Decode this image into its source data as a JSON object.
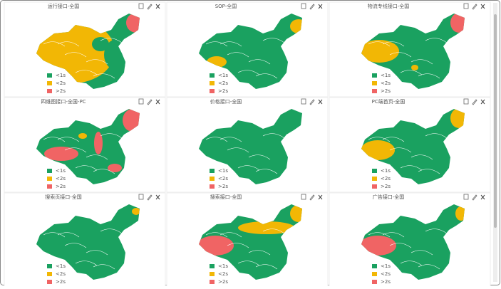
{
  "panels": [
    {
      "title": "运行接口-全国",
      "legend": [
        "<1s",
        "<2s",
        ">2s"
      ]
    },
    {
      "title": "SOP-全国",
      "legend": [
        "<1s",
        "<2s",
        ">2s"
      ]
    },
    {
      "title": "物流专线接口-全国",
      "legend": [
        "<1s",
        "<2s",
        ">2s"
      ]
    },
    {
      "title": "四维图接口-全国-PC",
      "legend": [
        "<1s",
        "<2s",
        ">2s"
      ]
    },
    {
      "title": "价格接口-全国",
      "legend": [
        "<1s",
        "<2s",
        ">2s"
      ]
    },
    {
      "title": "PC端首页-全国",
      "legend": [
        "<1s",
        "<2s",
        ">2s"
      ]
    },
    {
      "title": "搜索页接口-全国",
      "legend": [
        "<1s",
        "<2s",
        ">2s"
      ]
    },
    {
      "title": "搜索接口-全国",
      "legend": [
        "<1s",
        "<2s",
        ">2s"
      ]
    },
    {
      "title": "广告接口-全国",
      "legend": [
        "<1s",
        "<2s",
        ">2s"
      ]
    }
  ]
}
